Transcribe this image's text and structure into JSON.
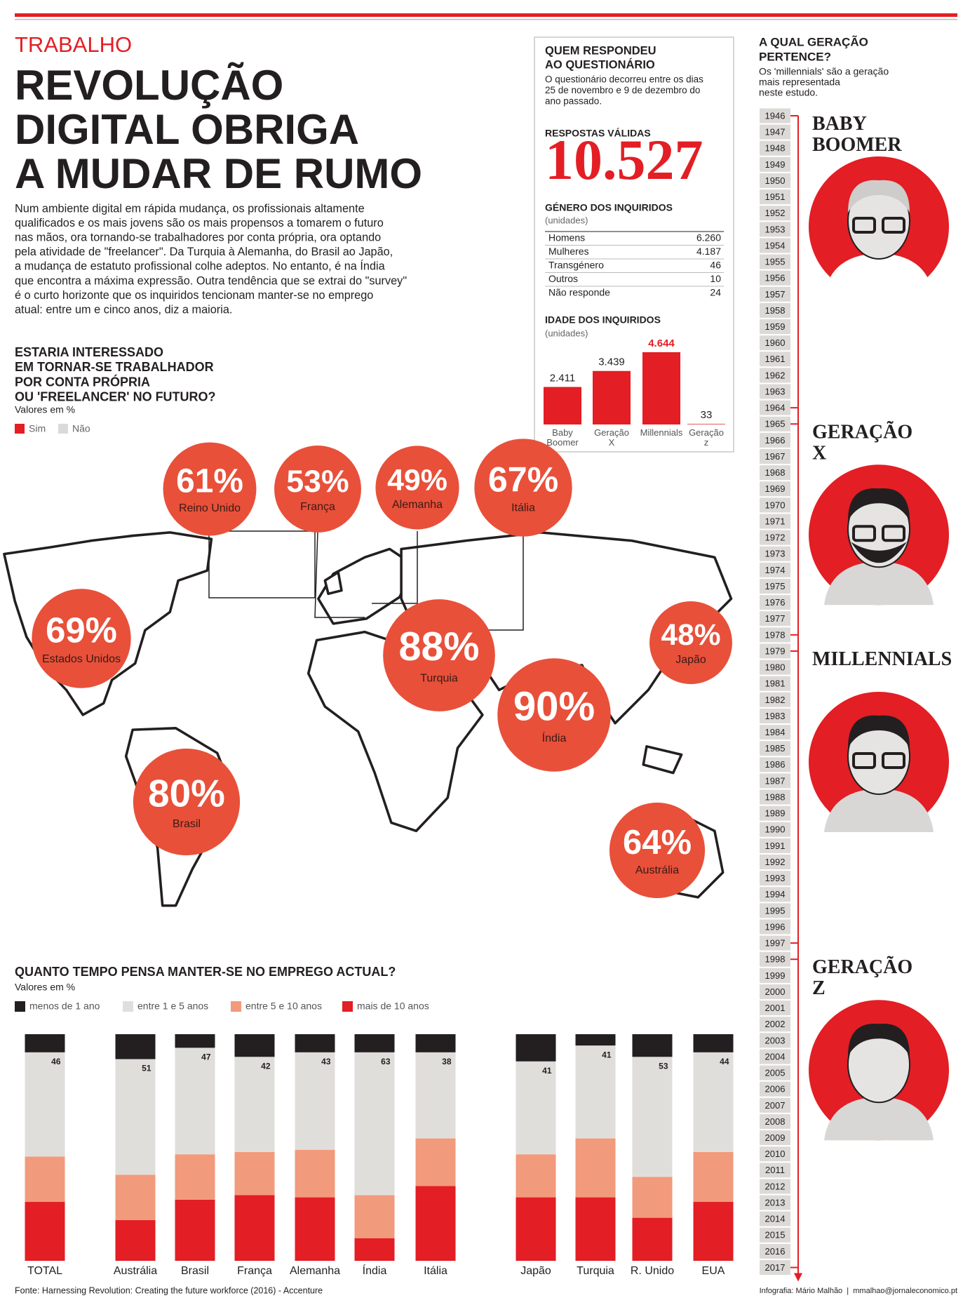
{
  "header": {
    "section": "TRABALHO",
    "title": [
      "REVOLUÇÃO",
      "DIGITAL OBRIGA",
      "A MUDAR DE RUMO"
    ],
    "intro": [
      "Num ambiente digital em rápida mudança, os profissionais altamente",
      "qualificados e os mais jovens são os mais propensos a tomarem o futuro",
      "nas mãos, ora tornando-se trabalhadores por conta própria, ora optando",
      "pela atividade de \"freelancer\". Da Turquia à Alemanha, do Brasil ao Japão,",
      "a mudança de estatuto profissional colhe adeptos. No entanto, é na Índia",
      "que encontra a máxima expressão. Outra tendência que se extrai do \"survey\"",
      "é o curto horizonte que os inquiridos tencionam manter-se no emprego",
      "atual: entre um e cinco anos, diz a maioria."
    ]
  },
  "survey": {
    "title": [
      "QUEM RESPONDEU",
      "AO QUESTIONÁRIO"
    ],
    "note": [
      "O questionário decorreu entre os dias",
      "25 de novembro e 9 de dezembro do",
      "ano passado."
    ],
    "responses_label": "RESPOSTAS VÁLIDAS",
    "responses": "10.527",
    "gender": {
      "title": "GÉNERO DOS INQUIRIDOS",
      "unit": "(unidades)",
      "rows": [
        [
          "Homens",
          "6.260"
        ],
        [
          "Mulheres",
          "4.187"
        ],
        [
          "Transgénero",
          "46"
        ],
        [
          "Outros",
          "10"
        ],
        [
          "Não responde",
          "24"
        ]
      ]
    }
  },
  "chart_data": [
    {
      "type": "bar",
      "title": "IDADE DOS INQUIRIDOS",
      "subtitle": "(unidades)",
      "categories": [
        "Baby Boomer",
        "Geração X",
        "Millennials",
        "Geração z"
      ],
      "values": [
        2411,
        3439,
        4644,
        33
      ],
      "value_labels": [
        "2.411",
        "3.439",
        "4.644",
        "33"
      ],
      "color": "#e31e24",
      "highlight_index": 2
    },
    {
      "type": "bubble-map",
      "title": [
        "ESTARIA INTERESSADO",
        "EM TORNAR-SE TRABALHADOR",
        "POR CONTA PRÓPRIA",
        "OU 'FREELANCER' NO FUTURO?"
      ],
      "subtitle": "Valores em %",
      "legend": [
        {
          "name": "Sim",
          "color": "#e31e24"
        },
        {
          "name": "Não",
          "color": "#dcdad7"
        }
      ],
      "categories": [
        "Reino Unido",
        "França",
        "Alemanha",
        "Itália",
        "Estados Unidos",
        "Turquia",
        "Japão",
        "Índia",
        "Brasil",
        "Austrália"
      ],
      "values": [
        61,
        53,
        49,
        67,
        69,
        88,
        48,
        90,
        80,
        64
      ],
      "value_labels": [
        "61%",
        "53%",
        "49%",
        "67%",
        "69%",
        "88%",
        "48%",
        "90%",
        "80%",
        "64%"
      ],
      "color": "#e8503a"
    },
    {
      "type": "stacked-bar",
      "title": "QUANTO TEMPO PENSA MANTER-SE NO EMPREGO ACTUAL?",
      "subtitle": "Valores em %",
      "categories": [
        "TOTAL",
        "Austrália",
        "Brasil",
        "França",
        "Alemanha",
        "Índia",
        "Itália",
        "Japão",
        "Turquia",
        "R. Unido",
        "EUA"
      ],
      "series": [
        {
          "name": "menos de 1 ano",
          "color": "#231f20",
          "values": [
            8,
            11,
            6,
            10,
            8,
            8,
            8,
            12,
            5,
            10,
            8
          ]
        },
        {
          "name": "entre 1 e 5 anos",
          "color": "#e0dedb",
          "labeled": true,
          "values": [
            46,
            51,
            47,
            42,
            43,
            63,
            38,
            41,
            41,
            53,
            44
          ]
        },
        {
          "name": "entre 5 e 10 anos",
          "color": "#f29a7c",
          "values": [
            20,
            20,
            20,
            19,
            21,
            19,
            21,
            19,
            26,
            18,
            22
          ]
        },
        {
          "name": "mais de 10 anos",
          "color": "#e31e24",
          "values": [
            26,
            18,
            27,
            29,
            28,
            10,
            33,
            28,
            28,
            19,
            26
          ]
        }
      ]
    }
  ],
  "generations": {
    "title": [
      "A QUAL GERAÇÃO",
      "PERTENCE?"
    ],
    "note": [
      "Os 'millennials' são a geração",
      "mais representada",
      "neste estudo."
    ],
    "years": [
      1946,
      1947,
      1948,
      1949,
      1950,
      1951,
      1952,
      1953,
      1954,
      1955,
      1956,
      1957,
      1958,
      1959,
      1960,
      1961,
      1962,
      1963,
      1964,
      1965,
      1966,
      1967,
      1968,
      1969,
      1970,
      1971,
      1972,
      1973,
      1974,
      1975,
      1976,
      1977,
      1978,
      1979,
      1980,
      1981,
      1982,
      1983,
      1984,
      1985,
      1986,
      1987,
      1988,
      1989,
      1990,
      1991,
      1992,
      1993,
      1994,
      1995,
      1996,
      1997,
      1998,
      1999,
      2000,
      2001,
      2002,
      2003,
      2004,
      2005,
      2006,
      2007,
      2008,
      2009,
      2010,
      2011,
      2012,
      2013,
      2014,
      2015,
      2016,
      2017
    ],
    "groups": [
      {
        "name": "BABY BOOMER",
        "first": 1946,
        "last": 1964
      },
      {
        "name": "GERAÇÃO X",
        "first": 1965,
        "last": 1978
      },
      {
        "name": "MILLENNIALS",
        "first": 1979,
        "last": 1997
      },
      {
        "name": "GERAÇÃO Z",
        "first": 1998,
        "last": 2017
      }
    ]
  },
  "footer": {
    "source": "Fonte: Harnessing Revolution: Creating the future workforce (2016) - Accenture",
    "credit": "Infografia: Mário Malhão  |  mmalhao@jornaleconomico.pt"
  }
}
